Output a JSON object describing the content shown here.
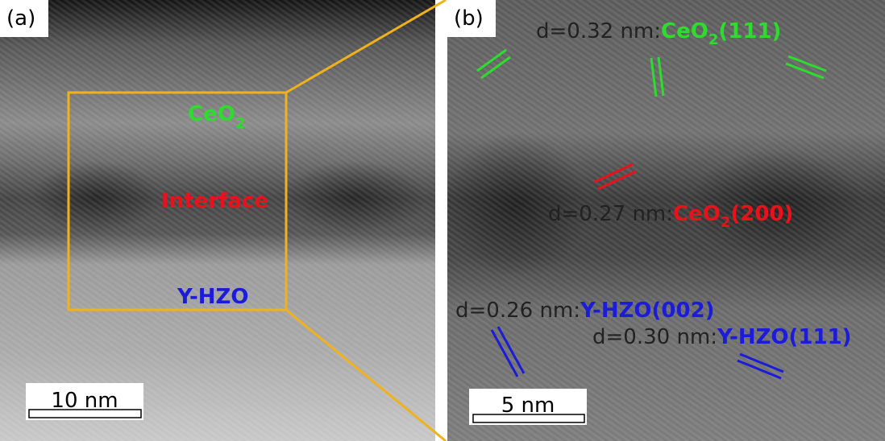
{
  "panels": [
    {
      "label": "(a)",
      "labels": [
        {
          "parts": [
            "CeO",
            "2"
          ]
        },
        {
          "parts": [
            "Interface"
          ]
        },
        {
          "parts": [
            "Y-HZO"
          ]
        }
      ],
      "scale_bar": "10 nm"
    },
    {
      "label": "(b)",
      "annotations": [
        {
          "spacing": "d=0.32 nm:",
          "phase": [
            "CeO",
            "2",
            "(111)"
          ]
        },
        {
          "spacing": "d=0.27 nm:",
          "phase": [
            "CeO",
            "2",
            "(200)"
          ]
        },
        {
          "spacing": "d=0.26 nm:",
          "phase": [
            "Y-HZO(002)"
          ]
        },
        {
          "spacing": "d=0.30 nm:",
          "phase": [
            "Y-HZO(111)"
          ]
        }
      ],
      "scale_bar": "5 nm"
    }
  ]
}
